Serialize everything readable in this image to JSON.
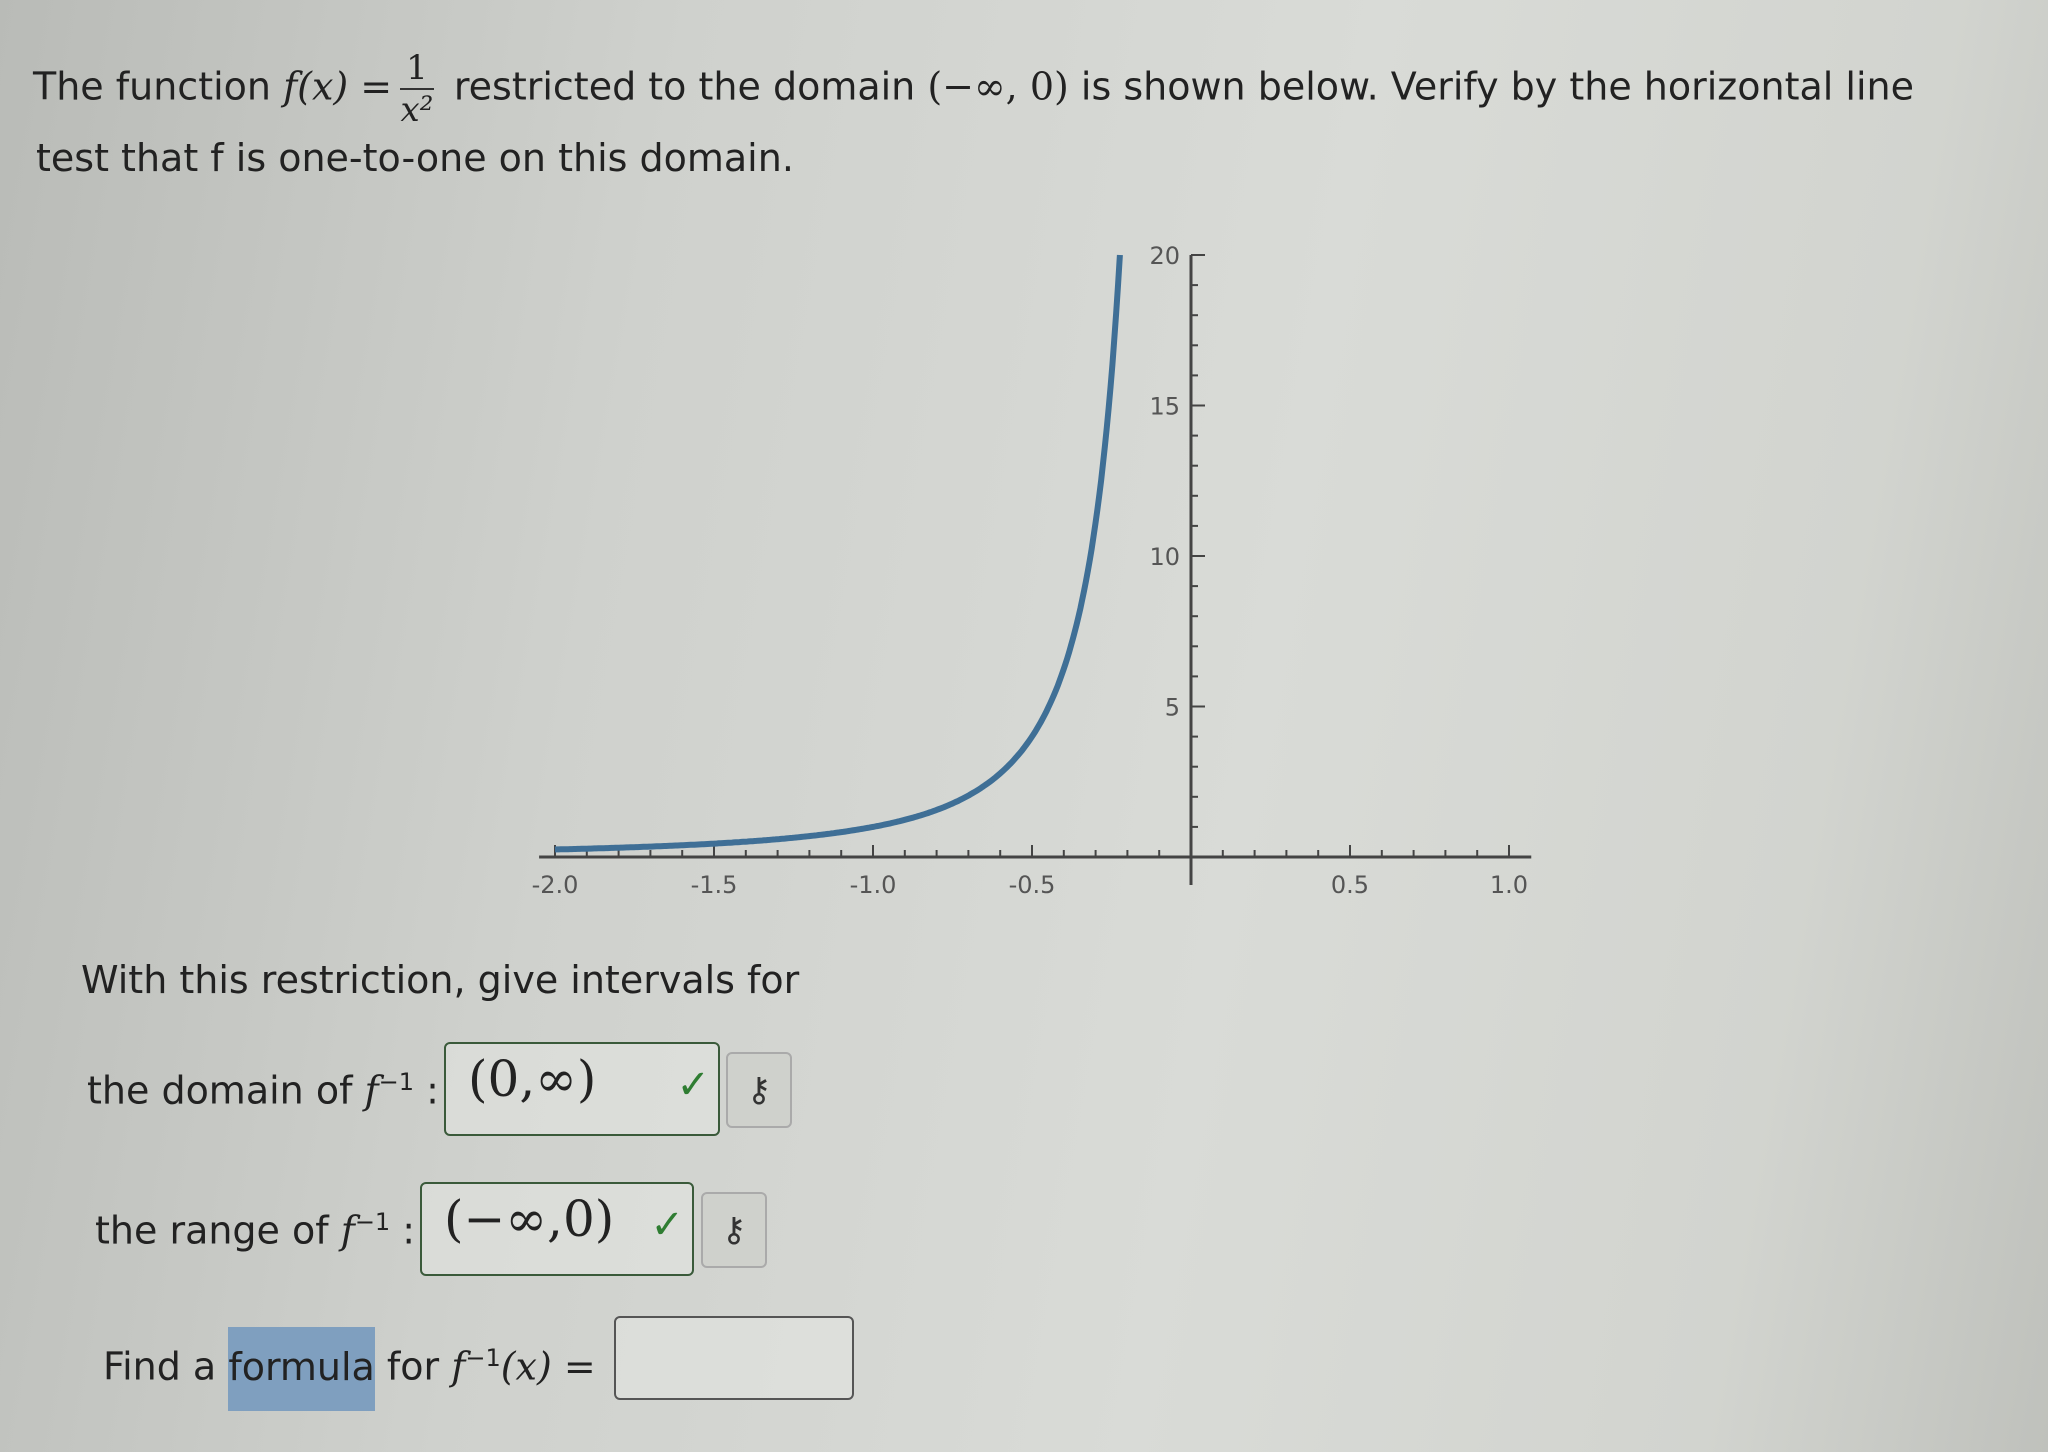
{
  "question": {
    "prefix": "The function ",
    "fx": "f(x) =",
    "numerator": "1",
    "denominator": "x²",
    "mid": " restricted to the domain ",
    "domain": "(−∞, 0)",
    "suffix": " is shown below. Verify by the horizontal line",
    "line2": "test that f is one-to-one on this domain."
  },
  "chart_data": {
    "type": "line",
    "function": "1/x^2",
    "x_domain": [
      -2,
      -0.2236
    ],
    "xlim": [
      -2.1,
      1.1
    ],
    "ylim": [
      0,
      20
    ],
    "xticks": [
      "-2.0",
      "-1.5",
      "-1.0",
      "-0.5",
      "0.5",
      "1.0"
    ],
    "xtick_values": [
      -2,
      -1.5,
      -1,
      -0.5,
      0.5,
      1
    ],
    "yticks": [
      "5",
      "10",
      "15",
      "20"
    ],
    "ytick_values": [
      5,
      10,
      15,
      20
    ],
    "line_color": "#3f6f96",
    "grid": false
  },
  "prompt": "With this restriction, give intervals for",
  "domain_row": {
    "label": "the domain of ",
    "fn": "f",
    "exp": "−1",
    "colon": ":",
    "value": "(0,∞)",
    "status": "✓",
    "key_icon": "⚷"
  },
  "range_row": {
    "label": "the range of ",
    "fn": "f",
    "exp": "−1",
    "colon": ":",
    "value": "(−∞,0)",
    "status": "✓",
    "key_icon": "⚷"
  },
  "formula_row": {
    "pre": "Find a ",
    "highlight": "formula",
    "post": " for ",
    "fn": "f",
    "exp": "−1",
    "arg": "(x) =",
    "value": ""
  },
  "colors": {
    "correct": "#2f7d32",
    "highlight": "#7f9fbf"
  }
}
